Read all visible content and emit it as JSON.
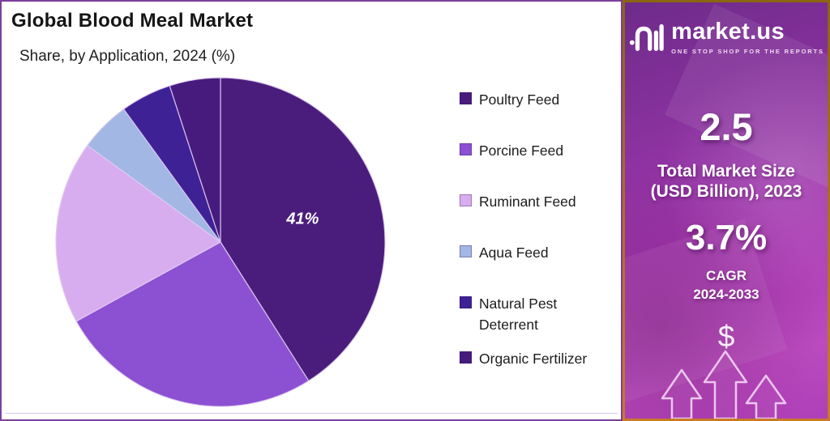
{
  "header": {
    "title": "Global Blood Meal Market",
    "subtitle": "Share, by Application, 2024 (%)"
  },
  "chart_data": {
    "type": "pie",
    "title": "Global Blood Meal Market",
    "subtitle": "Share, by Application, 2024 (%)",
    "unit": "% share",
    "categories": [
      "Poultry Feed",
      "Porcine Feed",
      "Ruminant Feed",
      "Aqua Feed",
      "Natural Pest Deterrent",
      "Organic Fertilizer"
    ],
    "values": [
      41,
      26,
      18,
      5,
      5,
      5
    ],
    "slice_labels": [
      "41%",
      "",
      "",
      "",
      "",
      ""
    ],
    "colors": [
      "#4A1D7D",
      "#8C50D2",
      "#D8ADEF",
      "#A2B7E4",
      "#3F2196",
      "#471B7E"
    ],
    "start_angle_deg": 0,
    "direction": "clockwise",
    "legend_position": "right"
  },
  "sidebar": {
    "logo_text": "market.us",
    "logo_tagline": "ONE STOP SHOP FOR THE REPORTS",
    "stat1_value": "2.5",
    "stat1_label_line1": "Total Market Size",
    "stat1_label_line2": "(USD Billion), 2023",
    "stat2_value": "3.7%",
    "stat2_label_line1": "CAGR",
    "stat2_label_line2": "2024-2033",
    "dollar_symbol": "$",
    "accent_border_color": "#A9701A",
    "panel_border_color": "#7C3F9E",
    "bg_gradient_top": "#6E2B8A",
    "bg_gradient_bottom": "#BC4BC0"
  }
}
